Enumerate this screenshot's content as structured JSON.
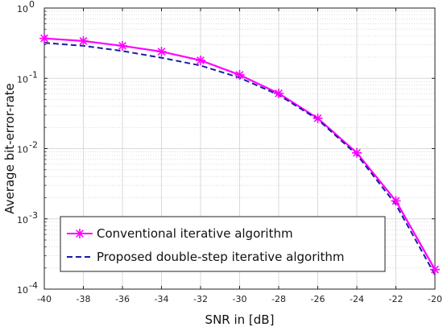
{
  "chart_data": {
    "type": "line",
    "title": "",
    "xlabel": "SNR in [dB]",
    "ylabel": "Average bit-error-rate",
    "xlim": [
      -40,
      -20
    ],
    "ylim": [
      0.0001,
      1
    ],
    "yscale": "log",
    "grid": true,
    "x_ticks": [
      -40,
      -38,
      -36,
      -34,
      -32,
      -30,
      -28,
      -26,
      -24,
      -22,
      -20
    ],
    "y_ticks": [
      {
        "value": 1,
        "base": "10",
        "exp": "0"
      },
      {
        "value": 0.1,
        "base": "10",
        "exp": "-1"
      },
      {
        "value": 0.01,
        "base": "10",
        "exp": "-2"
      },
      {
        "value": 0.001,
        "base": "10",
        "exp": "-3"
      },
      {
        "value": 0.0001,
        "base": "10",
        "exp": "-4"
      }
    ],
    "legend_position": "bottom-left",
    "series": [
      {
        "name": "Conventional iterative algorithm",
        "color": "#ff00ff",
        "line_style": "solid",
        "marker": "asterisk",
        "x": [
          -40,
          -38,
          -36,
          -34,
          -32,
          -30,
          -28,
          -26,
          -24,
          -22,
          -20
        ],
        "y": [
          0.37,
          0.34,
          0.29,
          0.24,
          0.18,
          0.112,
          0.061,
          0.027,
          0.0087,
          0.0018,
          0.00019
        ]
      },
      {
        "name": "Proposed double-step iterative algorithm",
        "color": "#1a1aa6",
        "line_style": "dashed",
        "marker": "none",
        "x": [
          -40,
          -38,
          -36,
          -34,
          -32,
          -30,
          -28,
          -26,
          -24,
          -22,
          -20
        ],
        "y": [
          0.32,
          0.29,
          0.245,
          0.196,
          0.152,
          0.102,
          0.058,
          0.026,
          0.0082,
          0.0016,
          0.00016
        ]
      }
    ]
  }
}
